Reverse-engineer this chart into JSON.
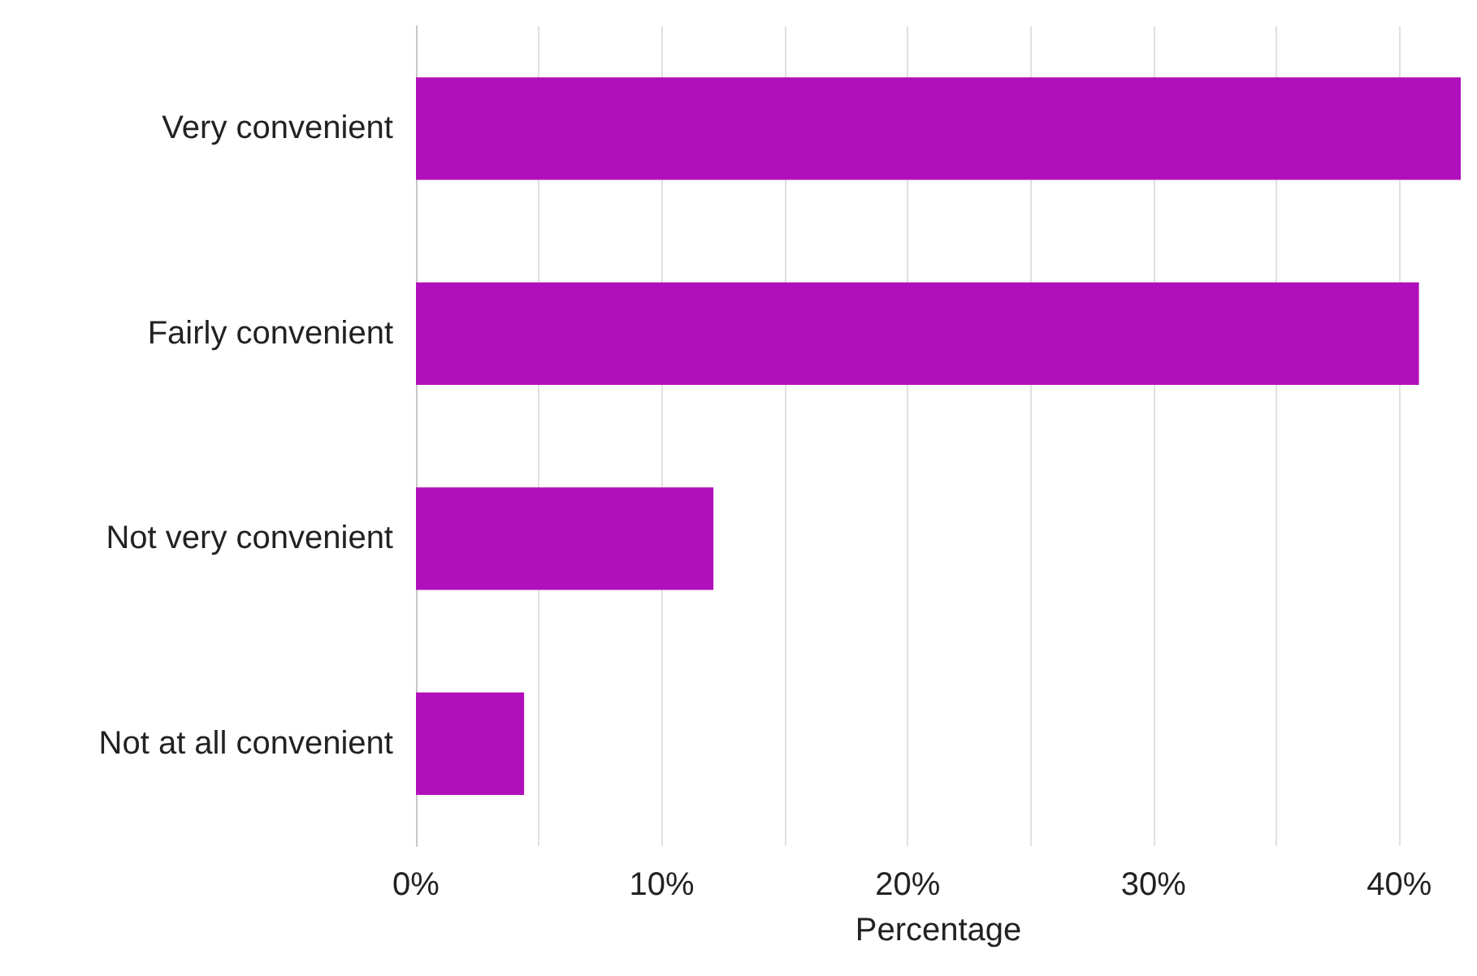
{
  "chart_data": {
    "type": "bar",
    "orientation": "horizontal",
    "xlabel": "Percentage",
    "categories": [
      "Very convenient",
      "Fairly convenient",
      "Not very convenient",
      "Not at all convenient"
    ],
    "values": [
      42.5,
      40.8,
      12.1,
      4.4
    ],
    "color": "#b010bb",
    "xlim": [
      0,
      42.5
    ],
    "xticks": [
      {
        "value": 0,
        "label": "0%"
      },
      {
        "value": 5,
        "label": null
      },
      {
        "value": 10,
        "label": "10%"
      },
      {
        "value": 15,
        "label": null
      },
      {
        "value": 20,
        "label": "20%"
      },
      {
        "value": 25,
        "label": null
      },
      {
        "value": 30,
        "label": "30%"
      },
      {
        "value": 35,
        "label": null
      },
      {
        "value": 40,
        "label": "40%"
      }
    ],
    "grid": "x"
  }
}
